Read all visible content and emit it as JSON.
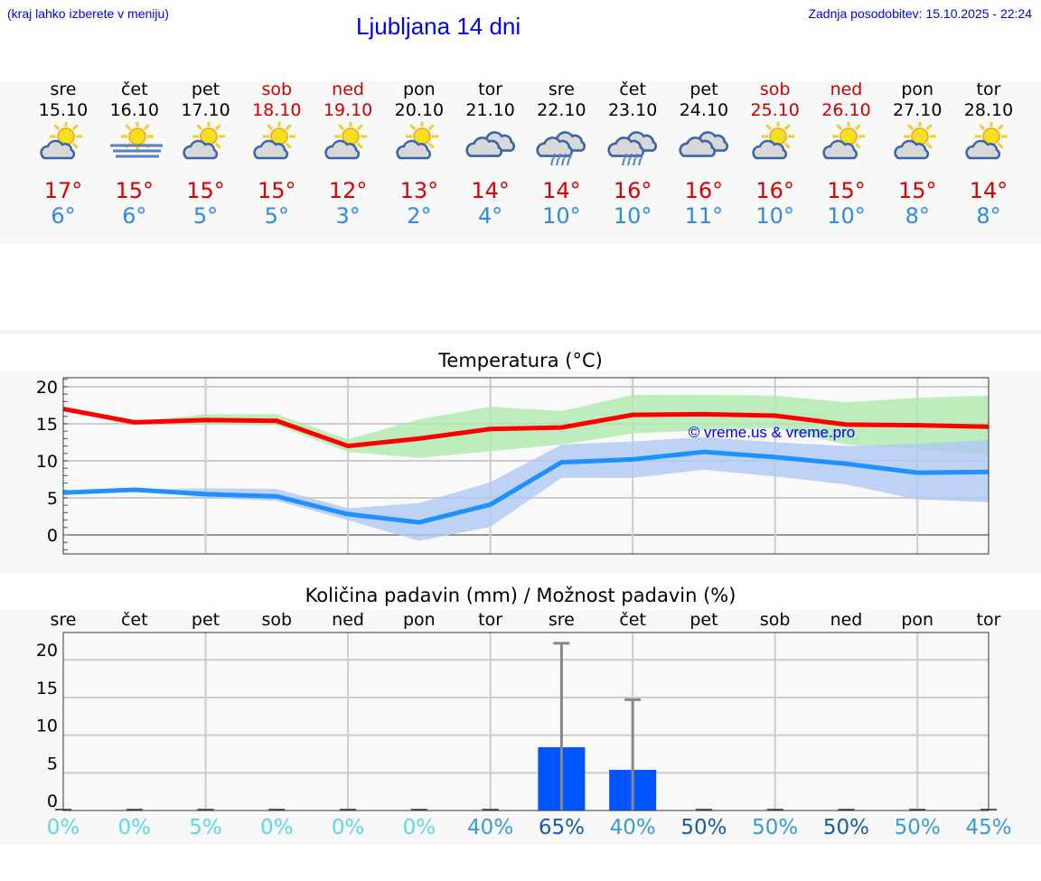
{
  "header": {
    "hint": "(kraj lahko izberete v meniju)",
    "title": "Ljubljana 14 dni",
    "updated": "Zadnja posodobitev: 15.10.2025 - 22:24"
  },
  "colors": {
    "weekend": "#cc0000",
    "max": "#dd0000",
    "min": "#2b8ae8",
    "max_line": "#ff0000",
    "min_line": "#1e90ff",
    "max_band": "#aee8ae",
    "min_band": "#aec8f2",
    "bar": "#0055ff"
  },
  "days": [
    {
      "name": "sre",
      "date": "15.10",
      "weekend": false,
      "icon": "partly-cloudy-icon",
      "max": "17°",
      "min": "6°"
    },
    {
      "name": "čet",
      "date": "16.10",
      "weekend": false,
      "icon": "fog-sun-icon",
      "max": "15°",
      "min": "6°"
    },
    {
      "name": "pet",
      "date": "17.10",
      "weekend": false,
      "icon": "partly-cloudy-icon",
      "max": "15°",
      "min": "5°"
    },
    {
      "name": "sob",
      "date": "18.10",
      "weekend": true,
      "icon": "partly-cloudy-icon",
      "max": "15°",
      "min": "5°"
    },
    {
      "name": "ned",
      "date": "19.10",
      "weekend": true,
      "icon": "partly-cloudy-icon",
      "max": "12°",
      "min": "3°"
    },
    {
      "name": "pon",
      "date": "20.10",
      "weekend": false,
      "icon": "partly-cloudy-icon",
      "max": "13°",
      "min": "2°"
    },
    {
      "name": "tor",
      "date": "21.10",
      "weekend": false,
      "icon": "cloudy-icon",
      "max": "14°",
      "min": "4°"
    },
    {
      "name": "sre",
      "date": "22.10",
      "weekend": false,
      "icon": "rain-cloud-icon",
      "max": "14°",
      "min": "10°"
    },
    {
      "name": "čet",
      "date": "23.10",
      "weekend": false,
      "icon": "rain-cloud-icon",
      "max": "16°",
      "min": "10°"
    },
    {
      "name": "pet",
      "date": "24.10",
      "weekend": false,
      "icon": "cloudy-icon",
      "max": "16°",
      "min": "11°"
    },
    {
      "name": "sob",
      "date": "25.10",
      "weekend": true,
      "icon": "partly-cloudy-icon",
      "max": "16°",
      "min": "10°"
    },
    {
      "name": "ned",
      "date": "26.10",
      "weekend": true,
      "icon": "partly-cloudy-icon",
      "max": "15°",
      "min": "10°"
    },
    {
      "name": "pon",
      "date": "27.10",
      "weekend": false,
      "icon": "partly-cloudy-icon",
      "max": "15°",
      "min": "8°"
    },
    {
      "name": "tor",
      "date": "28.10",
      "weekend": false,
      "icon": "partly-cloudy-icon",
      "max": "14°",
      "min": "8°"
    }
  ],
  "chart_data": [
    {
      "type": "line",
      "title": "Temperatura (°C)",
      "watermark": "© vreme.us & vreme.pro",
      "categories": [
        "sre",
        "čet",
        "pet",
        "sob",
        "ned",
        "pon",
        "tor",
        "sre",
        "čet",
        "pet",
        "sob",
        "ned",
        "pon",
        "tor"
      ],
      "ylim": [
        -2.6,
        21.3
      ],
      "yticks": [
        0,
        5,
        10,
        15,
        20
      ],
      "grid": true,
      "max_line": [
        17,
        15.2,
        15.5,
        15.4,
        12,
        13,
        14.3,
        14.5,
        16.2,
        16.3,
        16.1,
        14.9,
        14.8,
        14.6
      ],
      "max_band_upper": [
        17,
        15.2,
        16.3,
        16.3,
        12.9,
        15.6,
        17.3,
        16.7,
        18.9,
        18.9,
        18.8,
        17.9,
        18.5,
        18.8
      ],
      "max_band_lower": [
        17,
        15.2,
        14.9,
        14.8,
        11.2,
        10.4,
        11.3,
        12.2,
        13.7,
        14.1,
        14.4,
        12.2,
        11.6,
        10.8
      ],
      "min_line": [
        5.7,
        6.1,
        5.5,
        5.2,
        2.8,
        1.7,
        4.1,
        9.8,
        10.2,
        11.2,
        10.5,
        9.6,
        8.4,
        8.5
      ],
      "min_band_upper": [
        5.8,
        6.1,
        6.3,
        6.2,
        3.6,
        4.3,
        7.1,
        12.2,
        12.6,
        13.2,
        12.5,
        12.0,
        12.3,
        12.8
      ],
      "min_band_lower": [
        5.7,
        6.1,
        5.0,
        4.6,
        2.0,
        -0.8,
        1.1,
        7.7,
        7.7,
        8.8,
        7.9,
        6.8,
        4.8,
        4.4
      ]
    },
    {
      "type": "bar",
      "title": "Količina padavin (mm) / Možnost padavin (%)",
      "categories": [
        "sre",
        "čet",
        "pet",
        "sob",
        "ned",
        "pon",
        "tor",
        "sre",
        "čet",
        "pet",
        "sob",
        "ned",
        "pon",
        "tor"
      ],
      "ylim": [
        0,
        23.6
      ],
      "yticks": [
        0,
        5,
        10,
        15,
        20
      ],
      "grid": true,
      "values": [
        0,
        0,
        0,
        0,
        0,
        0,
        0,
        8.4,
        5.4,
        0,
        0,
        0,
        0,
        0
      ],
      "error_upper": [
        0,
        0,
        0,
        0,
        0,
        0,
        0,
        22.2,
        14.7,
        0,
        0,
        0,
        0,
        0
      ],
      "probability": [
        "0%",
        "0%",
        "5%",
        "0%",
        "0%",
        "0%",
        "40%",
        "65%",
        "40%",
        "50%",
        "50%",
        "50%",
        "50%",
        "45%"
      ],
      "probability_colors": [
        "#5ad8e8",
        "#5ad8e8",
        "#5ad8e8",
        "#5ad8e8",
        "#5ad8e8",
        "#5ad8e8",
        "#3a9ad9",
        "#1a5aa8",
        "#3a9ad9",
        "#1a5aa8",
        "#3a9ad9",
        "#1a5aa8",
        "#3a9ad9",
        "#3a9ad9"
      ]
    }
  ]
}
